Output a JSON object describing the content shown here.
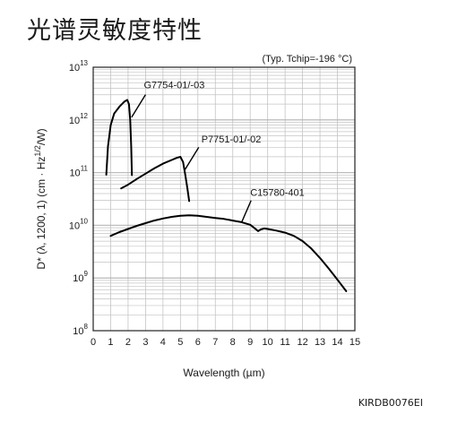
{
  "page": {
    "title": "光谱灵敏度特性",
    "footer": "KIRDB0076EI"
  },
  "chart_data": {
    "type": "line",
    "condition_note": "(Typ. Tchip=-196 °C)",
    "xlabel": "Wavelength (µm)",
    "ylabel": "D* (λ, 1200, 1) (cm · Hz1/2/W)",
    "ylabel_parts": {
      "main": "D* (λ, 1200, 1) (cm · Hz",
      "sup": "1/2",
      "end": "/W)"
    },
    "xlim": [
      0,
      15
    ],
    "x_ticks": [
      "0",
      "1",
      "2",
      "3",
      "4",
      "5",
      "6",
      "7",
      "8",
      "9",
      "10",
      "11",
      "12",
      "13",
      "14",
      "15"
    ],
    "ylim_log10": [
      8,
      13
    ],
    "y_log_scale": true,
    "y_ticks": [
      {
        "base": "10",
        "exp": "13",
        "pow": 13
      },
      {
        "base": "10",
        "exp": "12",
        "pow": 12
      },
      {
        "base": "10",
        "exp": "11",
        "pow": 11
      },
      {
        "base": "10",
        "exp": "10",
        "pow": 10
      },
      {
        "base": "10",
        "exp": "9",
        "pow": 9
      },
      {
        "base": "10",
        "exp": "8",
        "pow": 8
      }
    ],
    "grid": true,
    "line_color": "#000000",
    "grid_color": "#c4c4c4",
    "series": [
      {
        "name": "G7754-01/-03",
        "label_at": [
          2.9,
          12.6
        ],
        "leader": [
          [
            3.0,
            12.48
          ],
          [
            2.2,
            12.05
          ]
        ],
        "points": [
          [
            0.75,
            10.96
          ],
          [
            0.85,
            11.5
          ],
          [
            1.0,
            11.9
          ],
          [
            1.2,
            12.12
          ],
          [
            1.5,
            12.25
          ],
          [
            1.8,
            12.35
          ],
          [
            1.95,
            12.38
          ],
          [
            2.05,
            12.3
          ],
          [
            2.12,
            12.0
          ],
          [
            2.18,
            11.5
          ],
          [
            2.22,
            10.95
          ]
        ]
      },
      {
        "name": "P7751-01/-02",
        "label_at": [
          6.2,
          11.57
        ],
        "leader": [
          [
            6.05,
            11.48
          ],
          [
            5.25,
            11.05
          ]
        ],
        "points": [
          [
            1.6,
            10.7
          ],
          [
            2.0,
            10.77
          ],
          [
            2.5,
            10.88
          ],
          [
            3.0,
            10.98
          ],
          [
            3.5,
            11.08
          ],
          [
            4.0,
            11.17
          ],
          [
            4.5,
            11.24
          ],
          [
            4.8,
            11.28
          ],
          [
            5.0,
            11.3
          ],
          [
            5.15,
            11.2
          ],
          [
            5.28,
            10.95
          ],
          [
            5.4,
            10.7
          ],
          [
            5.5,
            10.46
          ]
        ]
      },
      {
        "name": "C15780-401",
        "label_at": [
          9.0,
          10.56
        ],
        "leader": [
          [
            9.05,
            10.47
          ],
          [
            8.5,
            10.05
          ]
        ],
        "points": [
          [
            1.0,
            9.8
          ],
          [
            1.5,
            9.87
          ],
          [
            2.0,
            9.93
          ],
          [
            2.5,
            9.99
          ],
          [
            3.0,
            10.04
          ],
          [
            3.5,
            10.09
          ],
          [
            4.0,
            10.13
          ],
          [
            4.5,
            10.16
          ],
          [
            5.0,
            10.18
          ],
          [
            5.5,
            10.19
          ],
          [
            6.0,
            10.18
          ],
          [
            6.5,
            10.16
          ],
          [
            7.0,
            10.14
          ],
          [
            7.5,
            10.12
          ],
          [
            8.0,
            10.09
          ],
          [
            8.5,
            10.06
          ],
          [
            9.0,
            10.01
          ],
          [
            9.2,
            9.96
          ],
          [
            9.45,
            9.89
          ],
          [
            9.6,
            9.92
          ],
          [
            9.8,
            9.94
          ],
          [
            10.0,
            9.93
          ],
          [
            10.5,
            9.9
          ],
          [
            11.0,
            9.86
          ],
          [
            11.5,
            9.8
          ],
          [
            12.0,
            9.7
          ],
          [
            12.5,
            9.56
          ],
          [
            13.0,
            9.38
          ],
          [
            13.5,
            9.18
          ],
          [
            14.0,
            8.97
          ],
          [
            14.5,
            8.75
          ]
        ]
      }
    ]
  }
}
